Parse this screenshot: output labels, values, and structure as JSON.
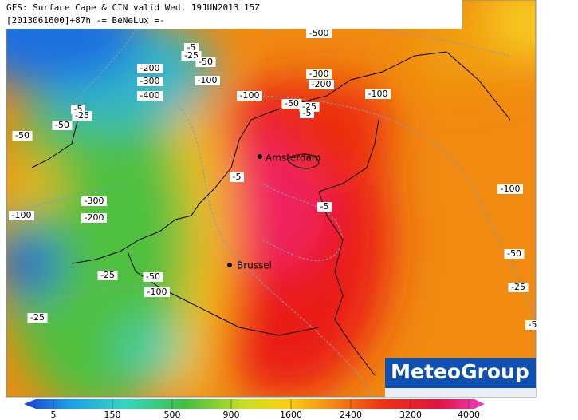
{
  "header": {
    "line1": "GFS: Surface Cape & CIN valid Wed, 19JUN2013 15Z",
    "line2": "[2013061600]+87h -= BeNeLux =-"
  },
  "cities": [
    {
      "name": "Amsterdam"
    },
    {
      "name": "Brussel"
    }
  ],
  "contour_labels": [
    "-500",
    "-5",
    "-25",
    "-50",
    "-200",
    "-300",
    "-100",
    "-400",
    "-300",
    "-200",
    "-100",
    "-100",
    "-50",
    "-25",
    "-5",
    "-5",
    "-25",
    "-50",
    "-50",
    "-100",
    "-5",
    "-300",
    "-200",
    "-5",
    "-100",
    "-50",
    "-25",
    "-50",
    "-100",
    "-25",
    "-25",
    "-5"
  ],
  "colorbar": {
    "ticks": [
      "5",
      "150",
      "500",
      "900",
      "1600",
      "2400",
      "3200",
      "4000"
    ]
  },
  "logo": {
    "text": "MeteoGroup"
  }
}
